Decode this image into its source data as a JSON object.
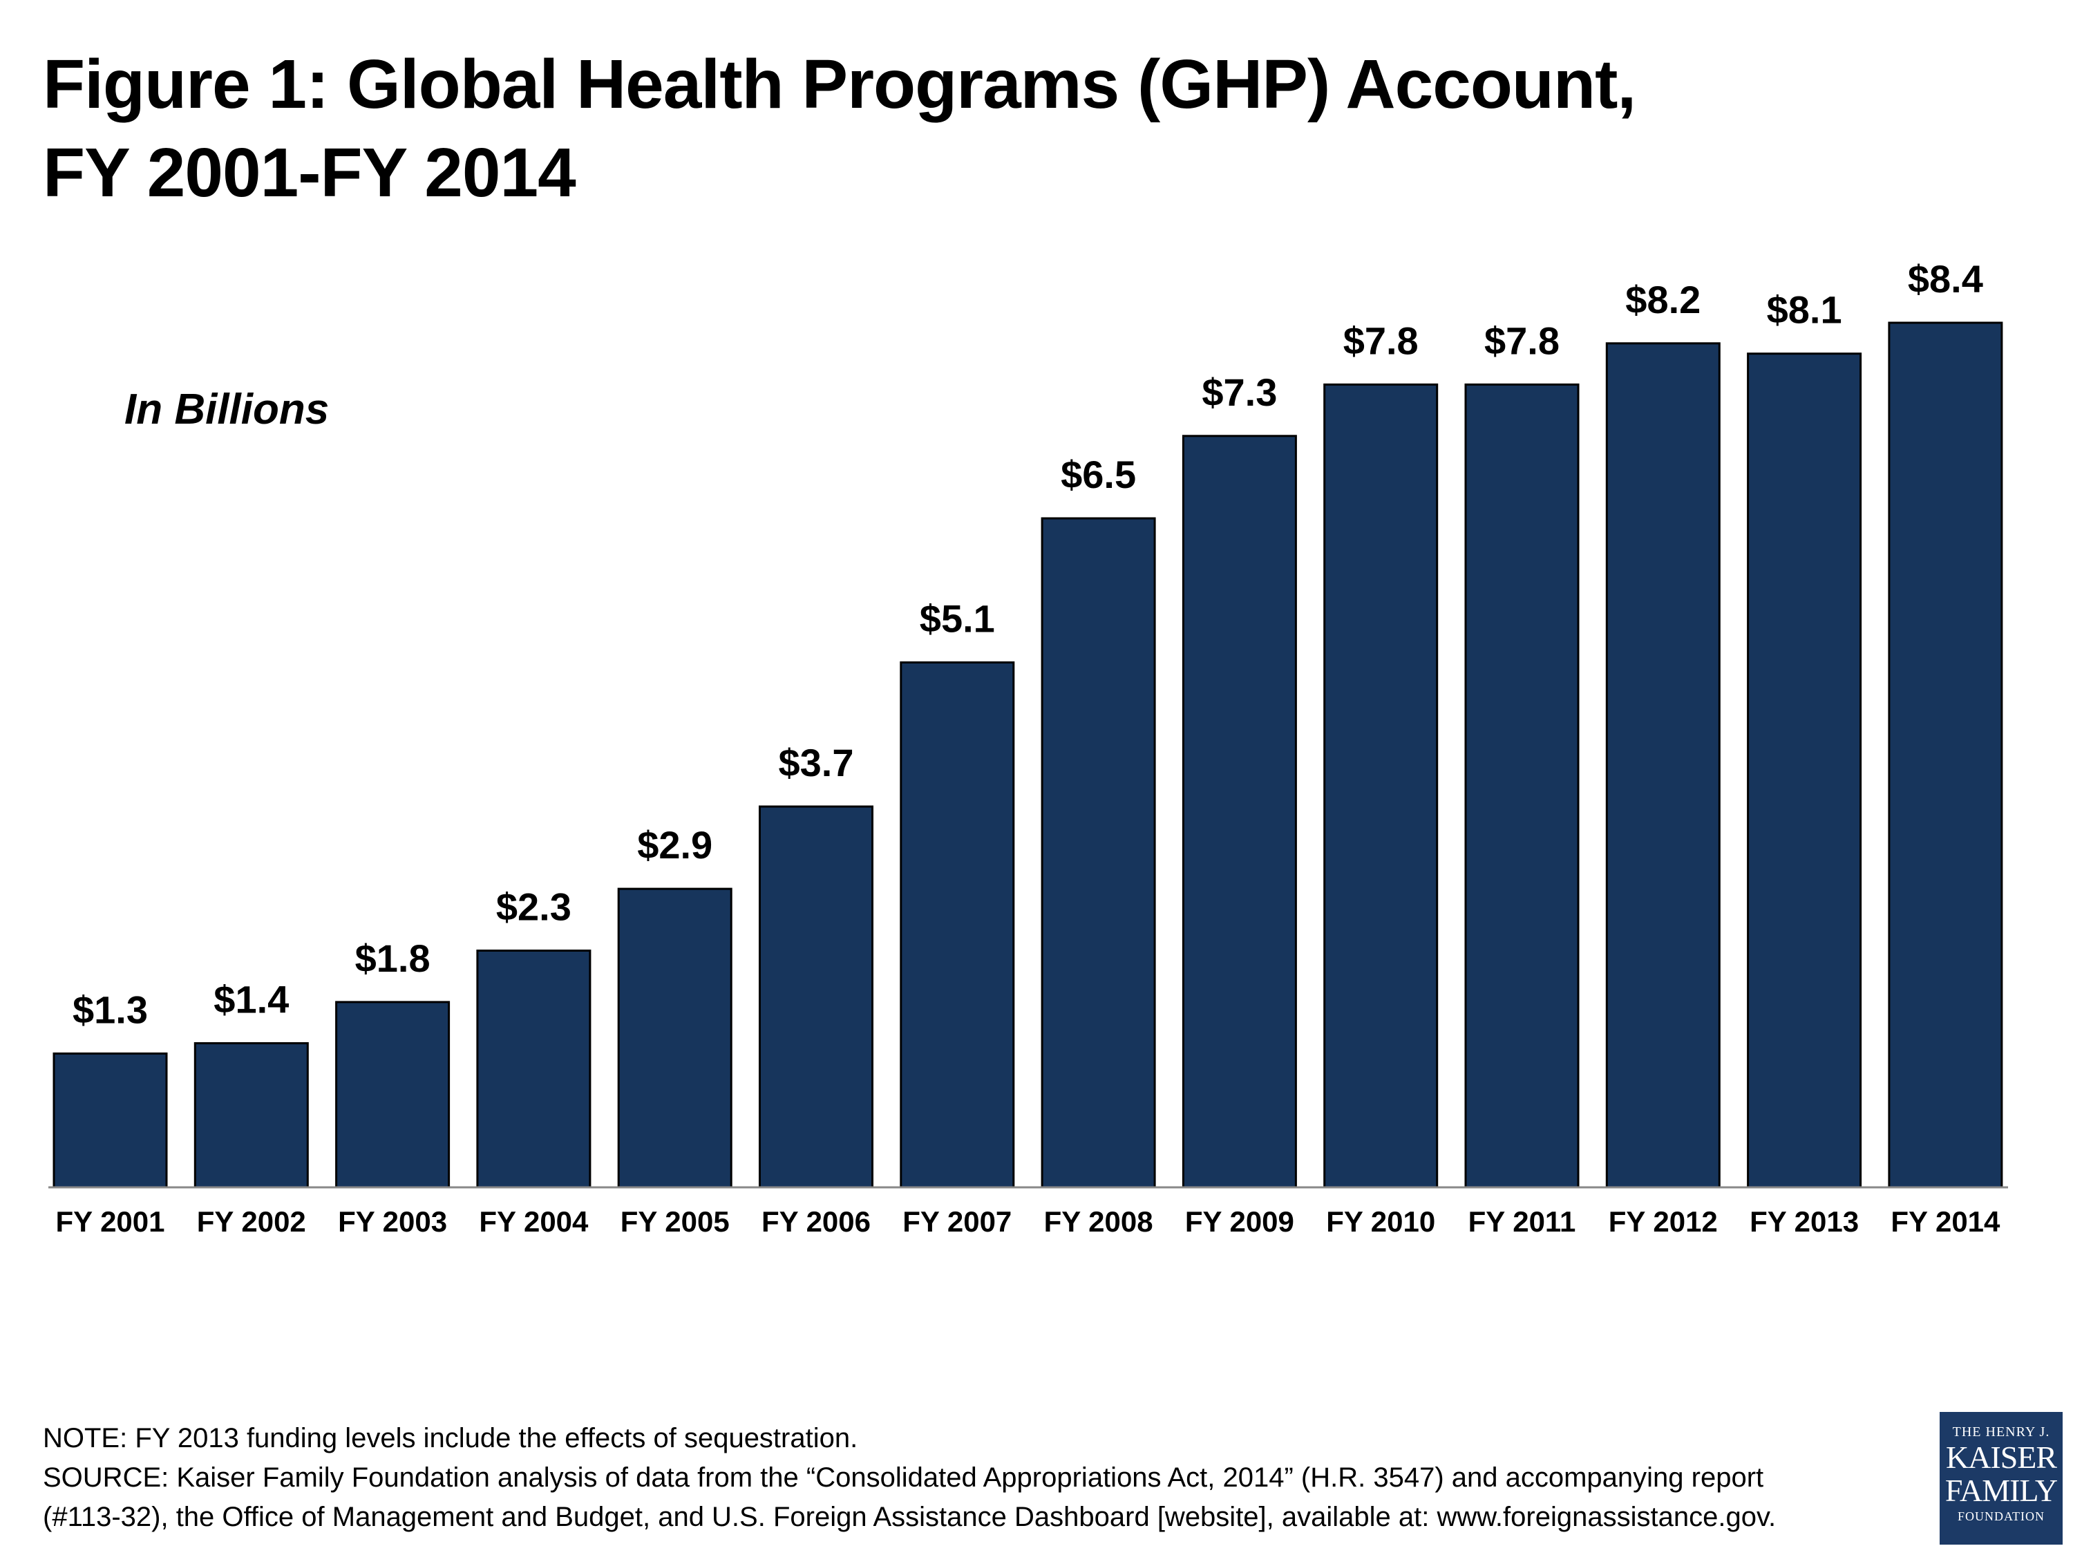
{
  "title": {
    "line1": "Figure 1: Global Health Programs (GHP) Account,",
    "line2": "FY 2001-FY 2014"
  },
  "subtitle": "In Billions",
  "colors": {
    "bar_fill": "#17355c",
    "bar_stroke": "#000000",
    "axis": "#888888",
    "logo_bg": "#1c3a66"
  },
  "chart_data": {
    "type": "bar",
    "title": "Figure 1: Global Health Programs (GHP) Account, FY 2001-FY 2014",
    "categories": [
      "FY 2001",
      "FY 2002",
      "FY 2003",
      "FY 2004",
      "FY 2005",
      "FY 2006",
      "FY 2007",
      "FY 2008",
      "FY 2009",
      "FY 2010",
      "FY 2011",
      "FY 2012",
      "FY 2013",
      "FY 2014"
    ],
    "values": [
      1.3,
      1.4,
      1.8,
      2.3,
      2.9,
      3.7,
      5.1,
      6.5,
      7.3,
      7.8,
      7.8,
      8.2,
      8.1,
      8.4
    ],
    "data_labels": [
      "$1.3",
      "$1.4",
      "$1.8",
      "$2.3",
      "$2.9",
      "$3.7",
      "$5.1",
      "$6.5",
      "$7.3",
      "$7.8",
      "$7.8",
      "$8.2",
      "$8.1",
      "$8.4"
    ],
    "ylabel": "In Billions",
    "ylim": [
      0,
      8.4
    ],
    "grid": false,
    "legend": "none"
  },
  "notes": {
    "line1": "NOTE: FY 2013 funding levels include the effects of sequestration.",
    "line2": "SOURCE: Kaiser Family Foundation analysis of data from the “Consolidated Appropriations Act, 2014” (H.R. 3547) and accompanying report",
    "line3": "(#113-32), the Office of Management and Budget, and U.S. Foreign Assistance Dashboard [website], available at: www.foreignassistance.gov."
  },
  "logo": {
    "line1": "THE HENRY J.",
    "line2": "KAISER",
    "line3": "FAMILY",
    "line4": "FOUNDATION"
  }
}
